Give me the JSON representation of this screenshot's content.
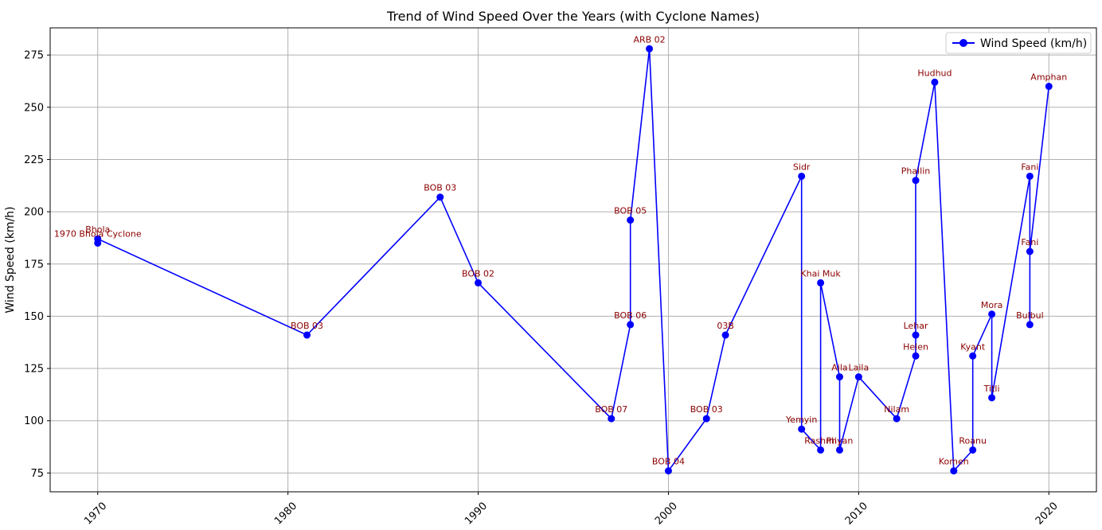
{
  "chart_data": {
    "type": "line",
    "title": "Trend of Wind Speed Over the Years (with Cyclone Names)",
    "xlabel": "",
    "ylabel": "Wind Speed (km/h)",
    "xlim": [
      1967.5,
      2022.5
    ],
    "ylim": [
      66,
      288
    ],
    "x_ticks": [
      1970,
      1980,
      1990,
      2000,
      2010,
      2020
    ],
    "y_ticks": [
      75,
      100,
      125,
      150,
      175,
      200,
      225,
      250,
      275
    ],
    "grid": true,
    "legend_position": "top-right",
    "series": [
      {
        "name": "Wind Speed (km/h)",
        "color": "#0000ff",
        "points": [
          {
            "x": 1970,
            "y": 185,
            "label": "1970 Bhola Cyclone"
          },
          {
            "x": 1970,
            "y": 187,
            "label": "Bhola"
          },
          {
            "x": 1981,
            "y": 141,
            "label": "BOB 03"
          },
          {
            "x": 1988,
            "y": 207,
            "label": "BOB 03"
          },
          {
            "x": 1990,
            "y": 166,
            "label": "BOB 02"
          },
          {
            "x": 1997,
            "y": 101,
            "label": "BOB 07"
          },
          {
            "x": 1998,
            "y": 146,
            "label": "BOB 06"
          },
          {
            "x": 1998,
            "y": 196,
            "label": "BOB 05"
          },
          {
            "x": 1999,
            "y": 278,
            "label": "ARB 02"
          },
          {
            "x": 2000,
            "y": 76,
            "label": "BOB 04"
          },
          {
            "x": 2002,
            "y": 101,
            "label": "BOB 03"
          },
          {
            "x": 2003,
            "y": 141,
            "label": "03B"
          },
          {
            "x": 2007,
            "y": 217,
            "label": "Sidr"
          },
          {
            "x": 2007,
            "y": 96,
            "label": "Yemyin"
          },
          {
            "x": 2008,
            "y": 86,
            "label": "Rashmi"
          },
          {
            "x": 2008,
            "y": 166,
            "label": "Khai Muk"
          },
          {
            "x": 2009,
            "y": 121,
            "label": "Aila"
          },
          {
            "x": 2009,
            "y": 86,
            "label": "Phyan"
          },
          {
            "x": 2010,
            "y": 121,
            "label": "Laila"
          },
          {
            "x": 2012,
            "y": 101,
            "label": "Nilam"
          },
          {
            "x": 2013,
            "y": 131,
            "label": "Helen"
          },
          {
            "x": 2013,
            "y": 141,
            "label": "Lehar"
          },
          {
            "x": 2013,
            "y": 215,
            "label": "Phailin"
          },
          {
            "x": 2014,
            "y": 262,
            "label": "Hudhud"
          },
          {
            "x": 2015,
            "y": 76,
            "label": "Komen"
          },
          {
            "x": 2016,
            "y": 86,
            "label": "Roanu"
          },
          {
            "x": 2016,
            "y": 131,
            "label": "Kyant"
          },
          {
            "x": 2017,
            "y": 151,
            "label": "Mora"
          },
          {
            "x": 2017,
            "y": 111,
            "label": "Titli"
          },
          {
            "x": 2019,
            "y": 217,
            "label": "Fani"
          },
          {
            "x": 2019,
            "y": 146,
            "label": "Bulbul"
          },
          {
            "x": 2019,
            "y": 181,
            "label": "Fani"
          },
          {
            "x": 2020,
            "y": 260,
            "label": "Amphan"
          }
        ]
      }
    ]
  }
}
